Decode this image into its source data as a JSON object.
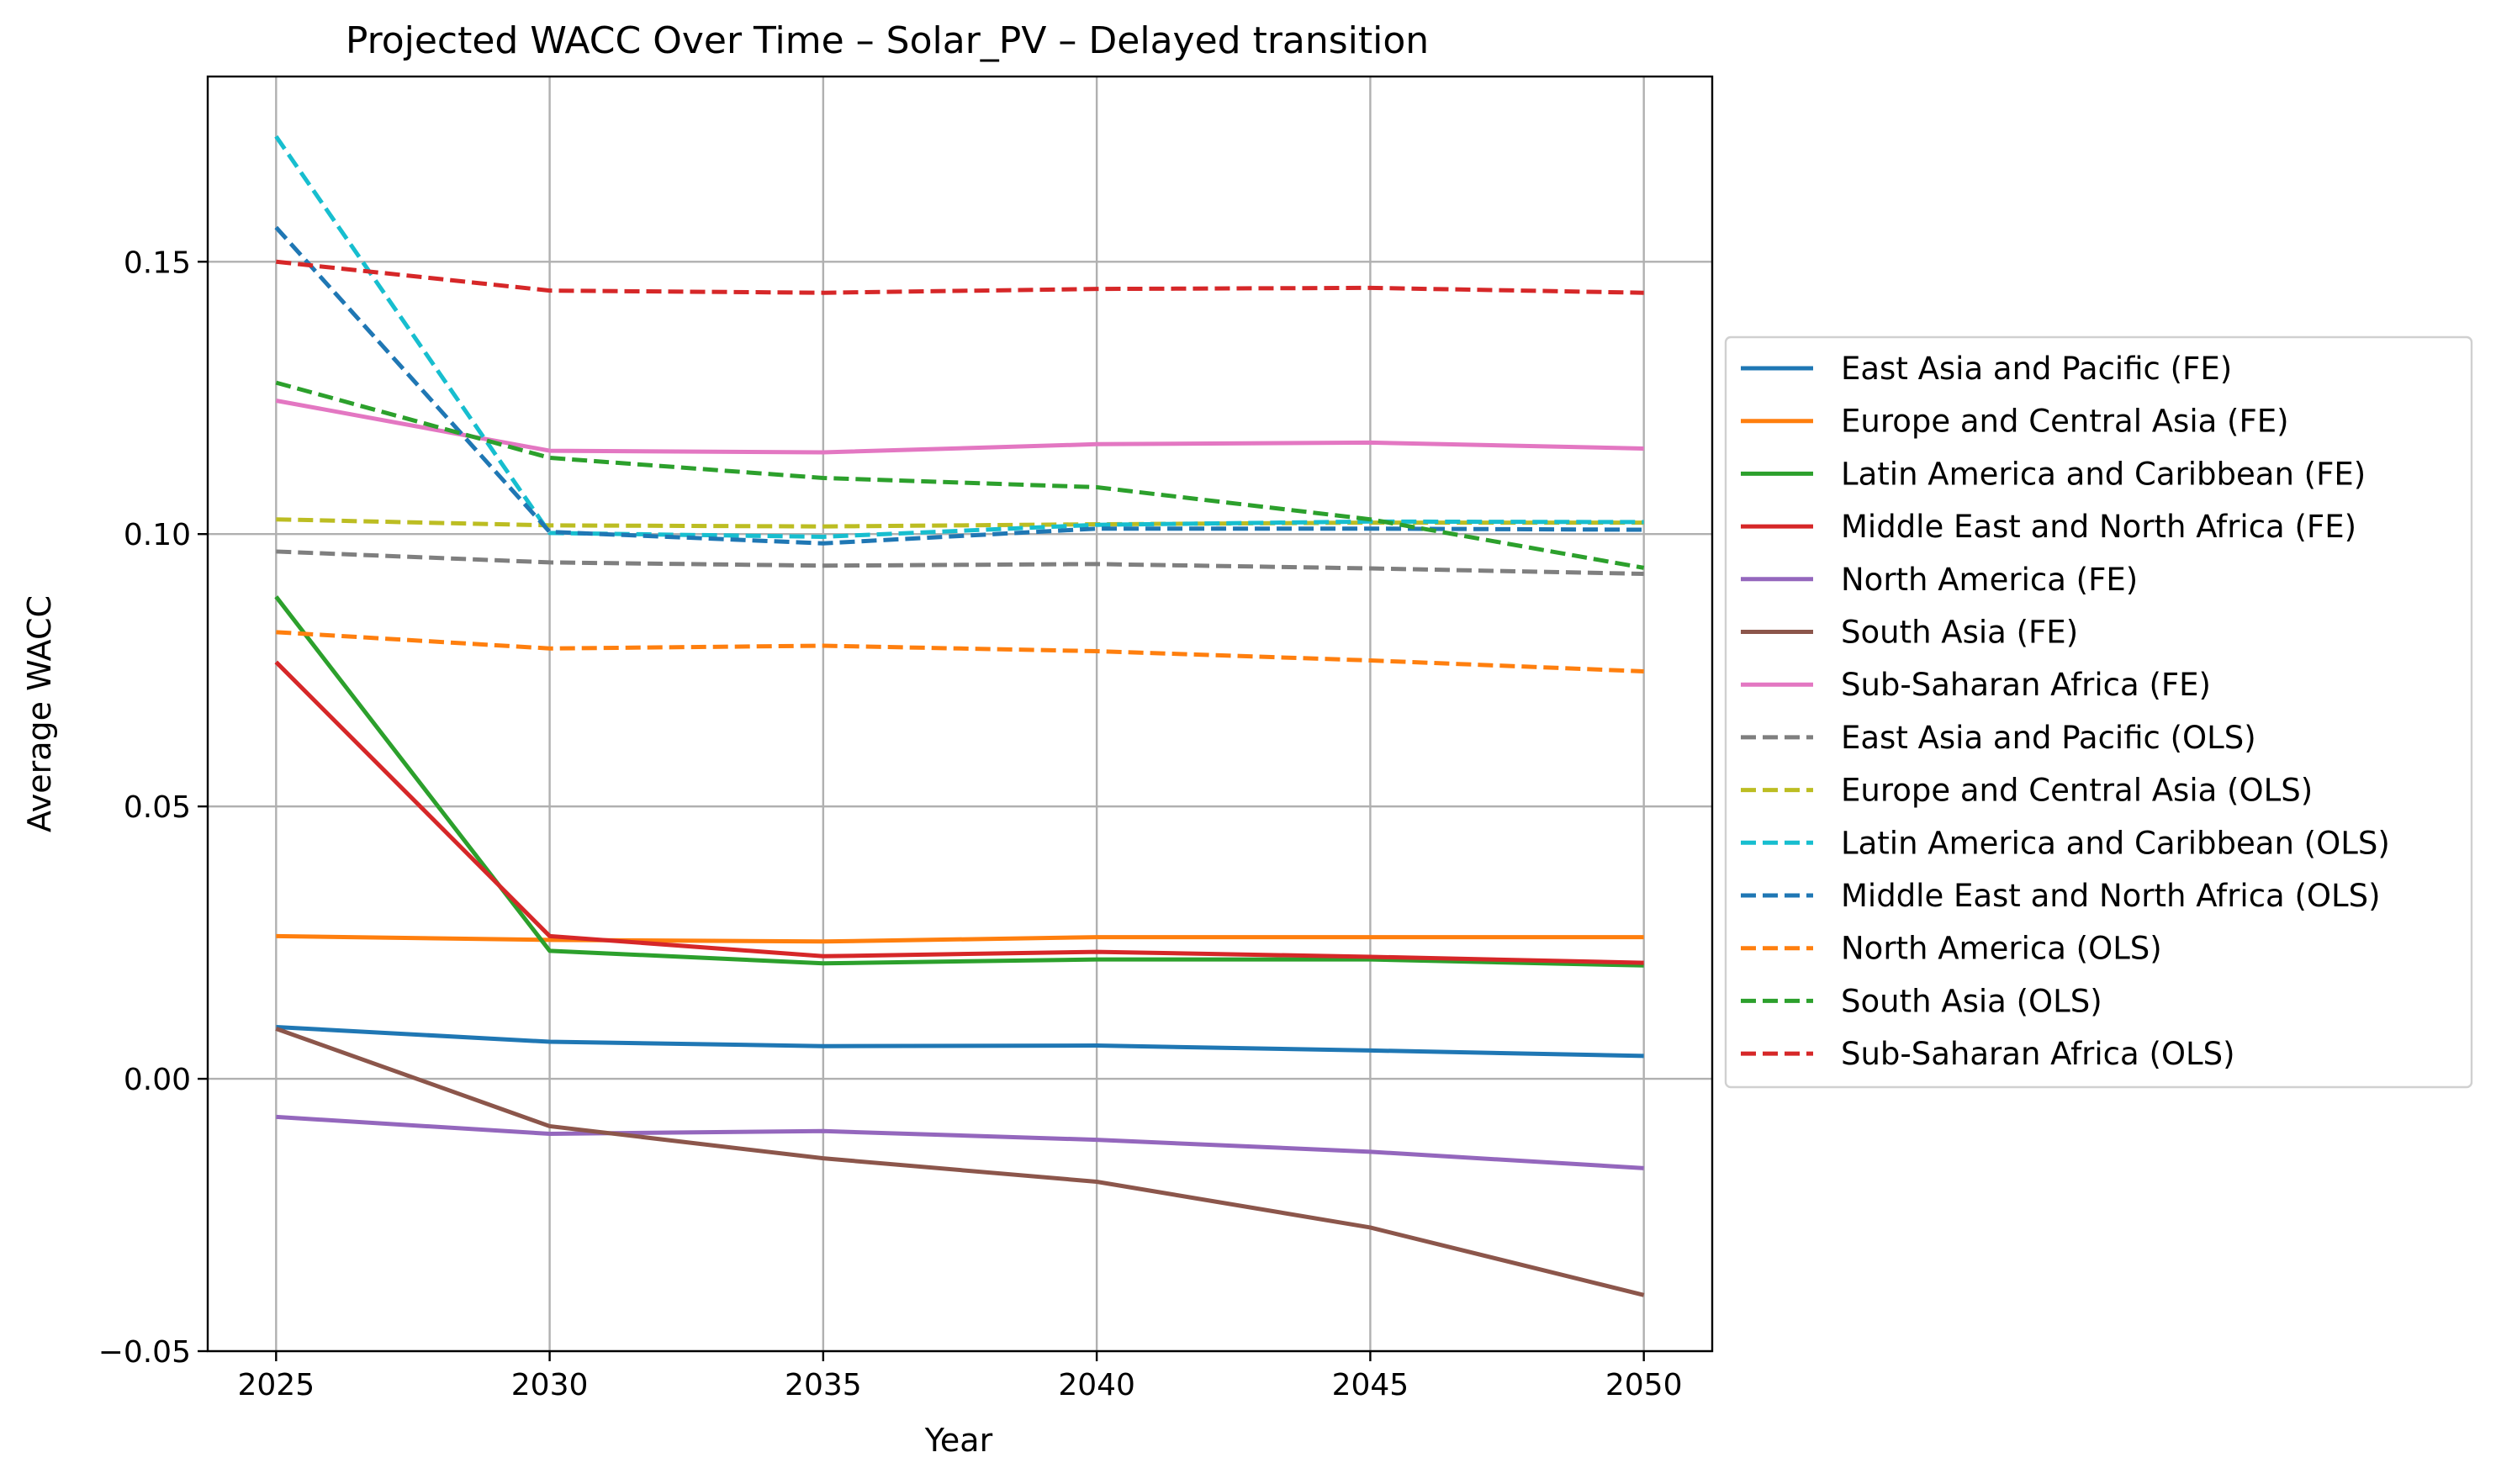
{
  "chart_data": {
    "type": "line",
    "title": "Projected WACC Over Time – Solar_PV – Delayed transition",
    "xlabel": "Year",
    "ylabel": "Average WACC",
    "x": [
      2025,
      2030,
      2035,
      2040,
      2045,
      2050
    ],
    "xlim": [
      2023.75,
      2051.25
    ],
    "ylim": [
      -0.05,
      0.184
    ],
    "xticks": [
      "2025",
      "2030",
      "2035",
      "2040",
      "2045",
      "2050"
    ],
    "yticks": [
      {
        "value": 0.15,
        "label": "0.15"
      },
      {
        "value": 0.1,
        "label": "0.10"
      },
      {
        "value": 0.05,
        "label": "0.05"
      },
      {
        "value": 0.0,
        "label": "0.00"
      },
      {
        "value": -0.05,
        "label": "−0.05"
      }
    ],
    "grid": true,
    "legend_position": "outside-right",
    "series": [
      {
        "name": "East Asia and Pacific (FE)",
        "color": "#1f77b4",
        "style": "solid",
        "values": [
          0.0095,
          0.0068,
          0.006,
          0.0061,
          0.0052,
          0.0042
        ]
      },
      {
        "name": "Europe and Central Asia (FE)",
        "color": "#ff7f0e",
        "style": "solid",
        "values": [
          0.0262,
          0.0255,
          0.0252,
          0.026,
          0.026,
          0.026
        ]
      },
      {
        "name": "Latin America and Caribbean (FE)",
        "color": "#2ca02c",
        "style": "solid",
        "values": [
          0.0885,
          0.0235,
          0.0212,
          0.0219,
          0.0219,
          0.0208
        ]
      },
      {
        "name": "Middle East and North Africa (FE)",
        "color": "#d62728",
        "style": "solid",
        "values": [
          0.0765,
          0.0262,
          0.0225,
          0.0233,
          0.0224,
          0.0213
        ]
      },
      {
        "name": "North America (FE)",
        "color": "#9467bd",
        "style": "solid",
        "values": [
          -0.007,
          -0.0101,
          -0.0096,
          -0.0112,
          -0.0134,
          -0.0164
        ]
      },
      {
        "name": "South Asia (FE)",
        "color": "#8c564b",
        "style": "solid",
        "values": [
          0.0092,
          -0.0087,
          -0.0146,
          -0.0189,
          -0.0273,
          -0.0397
        ]
      },
      {
        "name": "Sub-Saharan Africa (FE)",
        "color": "#e377c2",
        "style": "solid",
        "values": [
          0.1245,
          0.1153,
          0.115,
          0.1165,
          0.1168,
          0.1157
        ]
      },
      {
        "name": "East Asia and Pacific (OLS)",
        "color": "#7f7f7f",
        "style": "dashed",
        "values": [
          0.0968,
          0.0948,
          0.0942,
          0.0945,
          0.0937,
          0.0927
        ]
      },
      {
        "name": "Europe and Central Asia (OLS)",
        "color": "#bcbd22",
        "style": "dashed",
        "values": [
          0.1027,
          0.1016,
          0.1014,
          0.1018,
          0.1021,
          0.1021
        ]
      },
      {
        "name": "Latin America and Caribbean (OLS)",
        "color": "#17becf",
        "style": "dashed",
        "values": [
          0.173,
          0.1002,
          0.0995,
          0.1017,
          0.1023,
          0.1022
        ]
      },
      {
        "name": "Middle East and North Africa (OLS)",
        "color": "#1f77b4",
        "style": "dashed",
        "values": [
          0.1563,
          0.1004,
          0.0983,
          0.101,
          0.101,
          0.1008
        ]
      },
      {
        "name": "North America (OLS)",
        "color": "#ff7f0e",
        "style": "dashed",
        "values": [
          0.082,
          0.079,
          0.0795,
          0.0785,
          0.0768,
          0.0748
        ]
      },
      {
        "name": "South Asia (OLS)",
        "color": "#2ca02c",
        "style": "dashed",
        "values": [
          0.1278,
          0.114,
          0.1103,
          0.1086,
          0.1027,
          0.0938
        ]
      },
      {
        "name": "Sub-Saharan Africa (OLS)",
        "color": "#d62728",
        "style": "dashed",
        "values": [
          0.15,
          0.1447,
          0.1443,
          0.145,
          0.1452,
          0.1443
        ]
      }
    ]
  }
}
